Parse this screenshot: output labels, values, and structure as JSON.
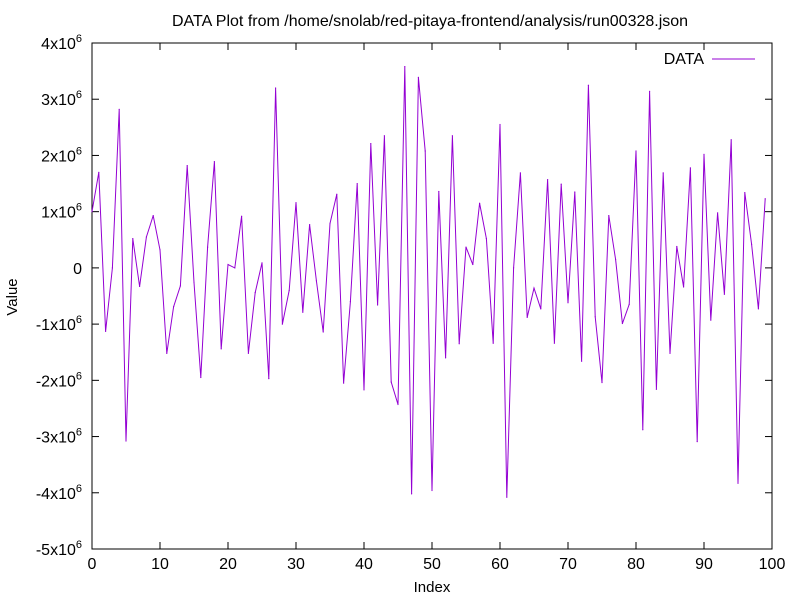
{
  "chart_data": {
    "type": "line",
    "title": "DATA Plot from /home/snolab/red-pitaya-frontend/analysis/run00328.json",
    "xlabel": "Index",
    "ylabel": "Value",
    "xlim": [
      0,
      100
    ],
    "ylim": [
      -5000000,
      4000000
    ],
    "x_ticks": [
      0,
      10,
      20,
      30,
      40,
      50,
      60,
      70,
      80,
      90,
      100
    ],
    "y_ticks": [
      {
        "value": 4000000,
        "base": "4x10",
        "exp": "6"
      },
      {
        "value": 3000000,
        "base": "3x10",
        "exp": "6"
      },
      {
        "value": 2000000,
        "base": "2x10",
        "exp": "6"
      },
      {
        "value": 1000000,
        "base": "1x10",
        "exp": "6"
      },
      {
        "value": 0,
        "base": "0",
        "exp": ""
      },
      {
        "value": -1000000,
        "base": "-1x10",
        "exp": "6"
      },
      {
        "value": -2000000,
        "base": "-2x10",
        "exp": "6"
      },
      {
        "value": -3000000,
        "base": "-3x10",
        "exp": "6"
      },
      {
        "value": -4000000,
        "base": "-4x10",
        "exp": "6"
      },
      {
        "value": -5000000,
        "base": "-5x10",
        "exp": "6"
      }
    ],
    "legend": "top-right",
    "grid": false,
    "series": [
      {
        "name": "DATA",
        "color": "#9400d3",
        "x": [
          0,
          1,
          2,
          3,
          4,
          5,
          6,
          7,
          8,
          9,
          10,
          11,
          12,
          13,
          14,
          15,
          16,
          17,
          18,
          19,
          20,
          21,
          22,
          23,
          24,
          25,
          26,
          27,
          28,
          29,
          30,
          31,
          32,
          33,
          34,
          35,
          36,
          37,
          38,
          39,
          40,
          41,
          42,
          43,
          44,
          45,
          46,
          47,
          48,
          49,
          50,
          51,
          52,
          53,
          54,
          55,
          56,
          57,
          58,
          59,
          60,
          61,
          62,
          63,
          64,
          65,
          66,
          67,
          68,
          69,
          70,
          71,
          72,
          73,
          74,
          75,
          76,
          77,
          78,
          79,
          80,
          81,
          82,
          83,
          84,
          85,
          86,
          87,
          88,
          89,
          90,
          91,
          92,
          93,
          94,
          95,
          96,
          97,
          98,
          99
        ],
        "values": [
          1000000,
          1700000,
          -1130000,
          0,
          2820000,
          -3080000,
          520000,
          -330000,
          550000,
          930000,
          320000,
          -1520000,
          -690000,
          -320000,
          1820000,
          -260000,
          -1950000,
          370000,
          1890000,
          -1440000,
          60000,
          0,
          920000,
          -1520000,
          -440000,
          90000,
          -1970000,
          3200000,
          -1000000,
          -400000,
          1160000,
          -790000,
          770000,
          -230000,
          -1140000,
          790000,
          1310000,
          -2050000,
          -600000,
          1500000,
          -2170000,
          2210000,
          -660000,
          2350000,
          -2030000,
          -2430000,
          3580000,
          -4020000,
          3390000,
          2080000,
          -3960000,
          1360000,
          -1600000,
          2350000,
          -1350000,
          370000,
          60000,
          1150000,
          520000,
          -1340000,
          2550000,
          -4080000,
          0,
          1690000,
          -880000,
          -360000,
          -730000,
          1570000,
          -1340000,
          1490000,
          -620000,
          1350000,
          -1660000,
          3250000,
          -870000,
          -2040000,
          930000,
          150000,
          -990000,
          -650000,
          2080000,
          -2880000,
          3140000,
          -2160000,
          1690000,
          -1520000,
          380000,
          -340000,
          1780000,
          -3090000,
          2020000,
          -930000,
          980000,
          -470000,
          2280000,
          -3830000,
          1340000,
          420000,
          -730000,
          1230000
        ]
      }
    ]
  }
}
